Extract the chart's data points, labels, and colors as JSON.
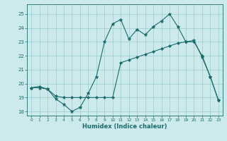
{
  "xlabel": "Humidex (Indice chaleur)",
  "ylabel": "",
  "background_color": "#cce9ec",
  "grid_color": "#99cccc",
  "line_color": "#1a6b6b",
  "xlim": [
    -0.5,
    23.5
  ],
  "ylim": [
    17.7,
    25.7
  ],
  "yticks": [
    18,
    19,
    20,
    21,
    22,
    23,
    24,
    25
  ],
  "xticks": [
    0,
    1,
    2,
    3,
    4,
    5,
    6,
    7,
    8,
    9,
    10,
    11,
    12,
    13,
    14,
    15,
    16,
    17,
    18,
    19,
    20,
    21,
    22,
    23
  ],
  "series1_x": [
    0,
    1,
    2,
    3,
    4,
    5,
    6,
    7,
    8,
    9,
    10,
    11,
    12,
    13,
    14,
    15,
    16,
    17,
    18,
    19,
    20,
    21,
    22,
    23
  ],
  "series1_y": [
    19.7,
    19.7,
    19.6,
    18.9,
    18.5,
    18.0,
    18.3,
    19.3,
    20.5,
    23.0,
    24.3,
    24.6,
    23.2,
    23.9,
    23.5,
    24.1,
    24.5,
    25.0,
    24.1,
    23.0,
    23.1,
    21.9,
    20.5,
    18.8
  ],
  "series2_x": [
    0,
    1,
    2,
    3,
    4,
    5,
    6,
    7,
    8,
    9,
    10,
    11,
    12,
    13,
    14,
    15,
    16,
    17,
    18,
    19,
    20,
    21,
    22,
    23
  ],
  "series2_y": [
    19.7,
    19.8,
    19.6,
    19.1,
    19.0,
    19.0,
    19.0,
    19.0,
    19.0,
    19.0,
    19.0,
    21.5,
    21.7,
    21.9,
    22.1,
    22.3,
    22.5,
    22.7,
    22.9,
    23.0,
    23.0,
    22.0,
    20.5,
    18.8
  ]
}
